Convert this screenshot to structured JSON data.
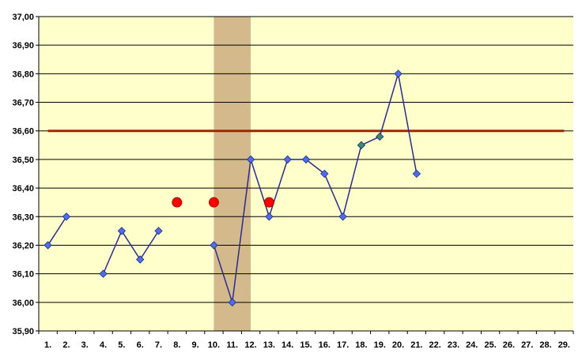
{
  "chart_data": {
    "type": "line",
    "title": "",
    "xlabel": "",
    "ylabel": "",
    "ylim": [
      35.9,
      37.0
    ],
    "y_tick_labels": [
      "35,90",
      "36,00",
      "36,10",
      "36,20",
      "36,30",
      "36,40",
      "36,50",
      "36,60",
      "36,70",
      "36,80",
      "36,90",
      "37,00"
    ],
    "y_ticks": [
      35.9,
      36.0,
      36.1,
      36.2,
      36.3,
      36.4,
      36.5,
      36.6,
      36.7,
      36.8,
      36.9,
      37.0
    ],
    "categories": [
      "1.",
      "2.",
      "3.",
      "4.",
      "5.",
      "6.",
      "7.",
      "8.",
      "9.",
      "10.",
      "11.",
      "12.",
      "13.",
      "14.",
      "15.",
      "16.",
      "17.",
      "18.",
      "19.",
      "20.",
      "21.",
      "22.",
      "23.",
      "24.",
      "25.",
      "26.",
      "27.",
      "28.",
      "29."
    ],
    "grid": true,
    "series": [
      {
        "name": "",
        "color": "#2b2b8c",
        "marker_color": "#4d6fef",
        "values": [
          36.2,
          36.3,
          null,
          36.1,
          36.25,
          36.15,
          36.25,
          null,
          null,
          36.2,
          36.0,
          36.5,
          36.3,
          36.5,
          36.5,
          36.45,
          36.3,
          36.55,
          36.58,
          36.8,
          36.45,
          null,
          null,
          null,
          null,
          null,
          null,
          null,
          null
        ],
        "highlight_points": [
          18,
          19
        ],
        "highlight_color": "#3d8a6e"
      }
    ],
    "reference_line": {
      "value": 36.6,
      "color": "#9c2a00"
    },
    "shaded_band": {
      "from_category": 10,
      "to_category": 12,
      "color": "#d4b98c"
    },
    "red_markers": [
      {
        "category": 8,
        "value": 36.35
      },
      {
        "category": 10,
        "value": 36.35
      },
      {
        "category": 13,
        "value": 36.35
      }
    ],
    "colors": {
      "plot_background": "#ffffcc",
      "gridline": "#000000",
      "red_marker": "#ff0000"
    }
  }
}
